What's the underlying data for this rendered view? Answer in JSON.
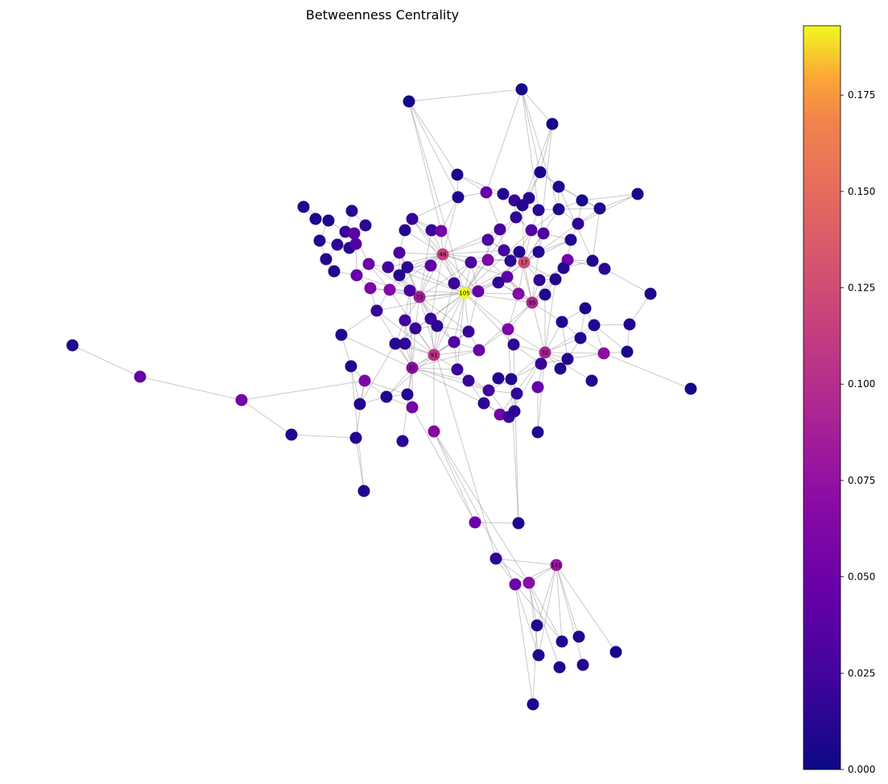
{
  "title": "Betweenness Centrality",
  "colorbar": {
    "colormap": "plasma",
    "range": [
      0,
      0.193
    ],
    "ticks": [
      {
        "value": 0.0,
        "label": "0.000"
      },
      {
        "value": 0.025,
        "label": "0.025"
      },
      {
        "value": 0.05,
        "label": "0.050"
      },
      {
        "value": 0.075,
        "label": "0.075"
      },
      {
        "value": 0.1,
        "label": "0.100"
      },
      {
        "value": 0.125,
        "label": "0.125"
      },
      {
        "value": 0.15,
        "label": "0.150"
      },
      {
        "value": 0.175,
        "label": "0.175"
      }
    ]
  },
  "chart_data": {
    "type": "network",
    "labeled_nodes": [
      {
        "label": "105",
        "value": 0.193
      },
      {
        "label": "17",
        "value": 0.125
      },
      {
        "label": "48",
        "value": 0.115
      },
      {
        "label": "95",
        "value": 0.095
      },
      {
        "label": "91",
        "value": 0.105
      },
      {
        "label": "32",
        "value": 0.09
      },
      {
        "label": "72",
        "value": 0.085
      },
      {
        "label": "22",
        "value": 0.07
      },
      {
        "label": "141",
        "value": 0.08
      }
    ]
  }
}
